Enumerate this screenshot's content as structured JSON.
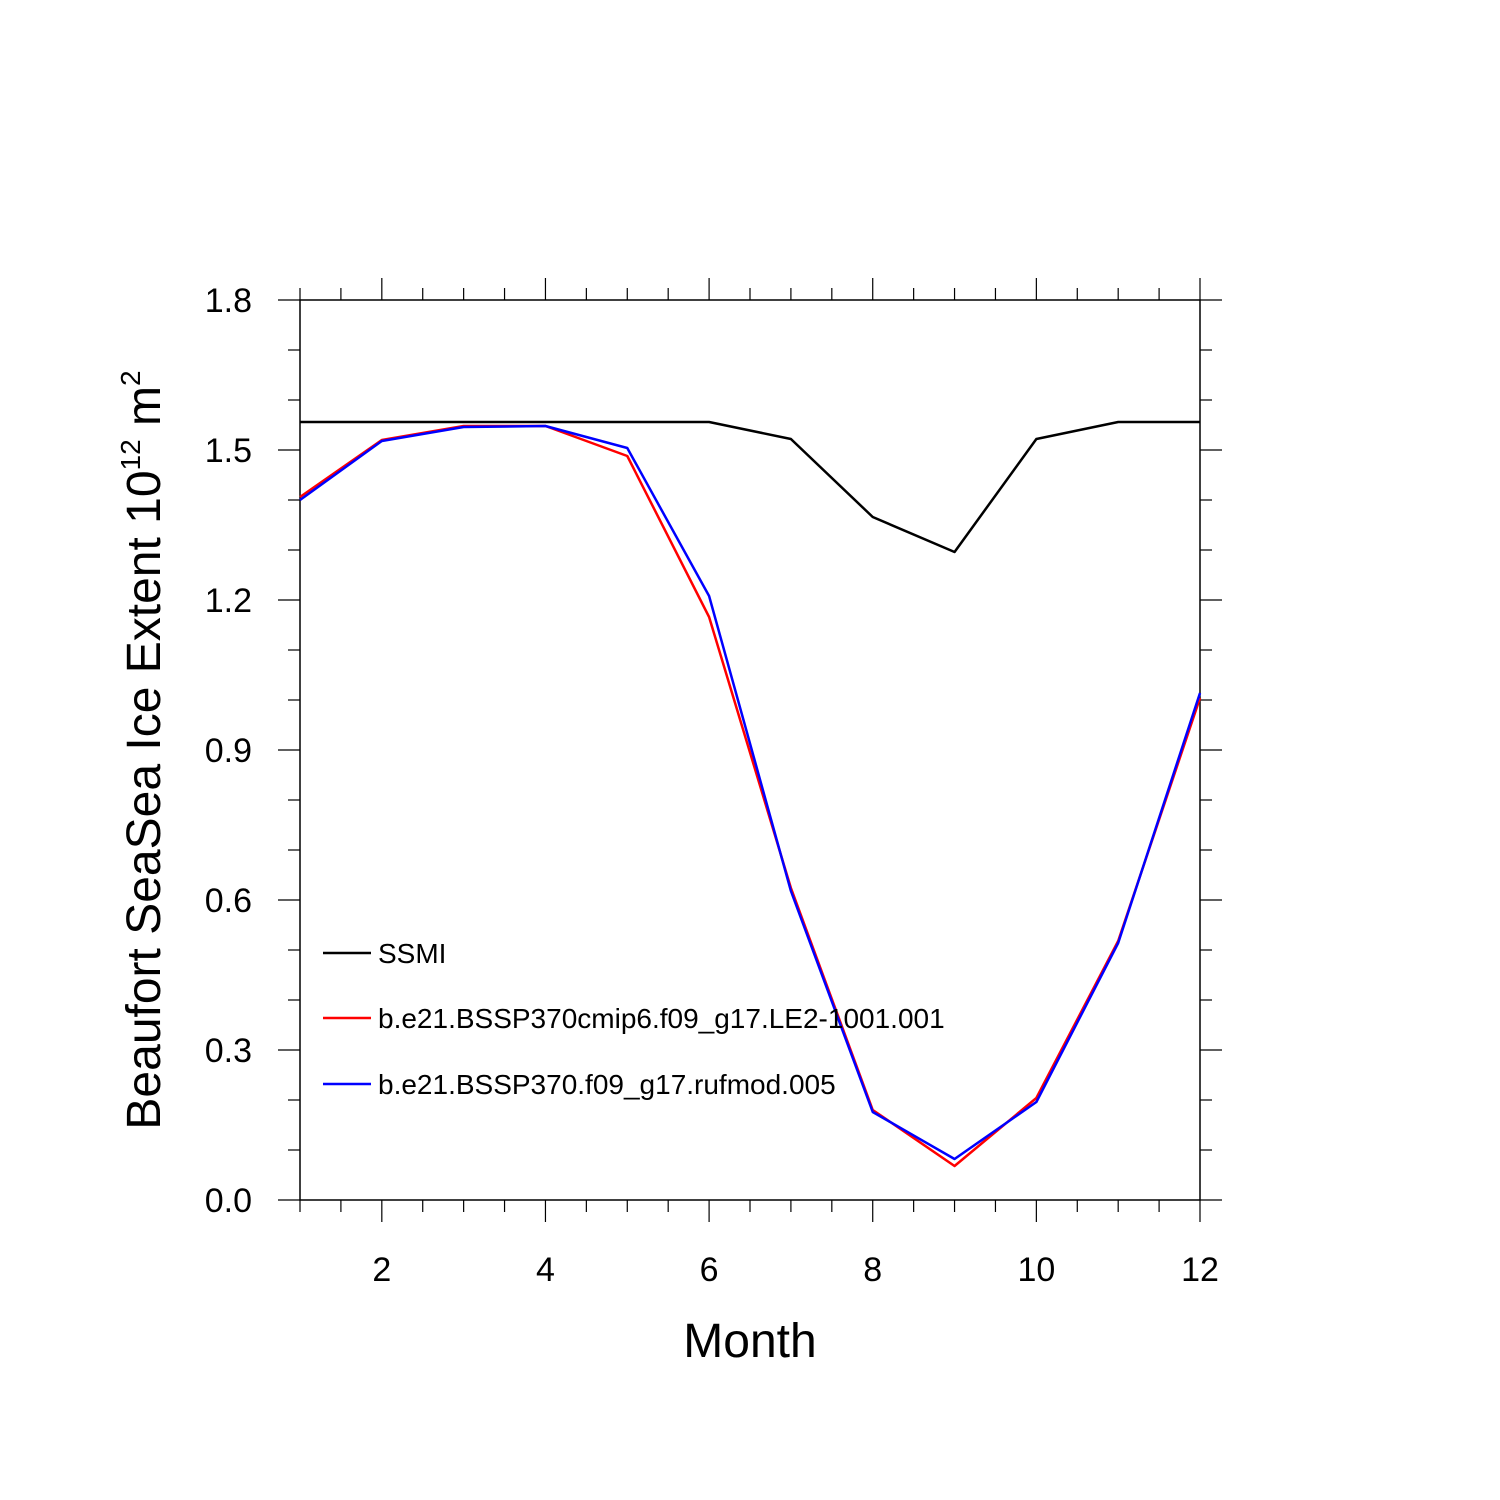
{
  "chart_data": {
    "type": "line",
    "xlabel": "Month",
    "ylabel": {
      "main": "Beaufort SeaSea Ice Extent 10",
      "exp": "12",
      "unit": " m",
      "unit_exp": "2"
    },
    "xlim": [
      1,
      12
    ],
    "ylim": [
      0.0,
      1.8
    ],
    "x_major_ticks": [
      2,
      4,
      6,
      8,
      10,
      12
    ],
    "y_major_ticks": [
      0.0,
      0.3,
      0.6,
      0.9,
      1.2,
      1.5,
      1.8
    ],
    "y_tick_labels": [
      "0.0",
      "0.3",
      "0.6",
      "0.9",
      "1.2",
      "1.5",
      "1.8"
    ],
    "x_tick_labels": [
      "2",
      "4",
      "6",
      "8",
      "10",
      "12"
    ],
    "legend_position": "lower-left",
    "x": [
      1,
      2,
      3,
      4,
      5,
      6,
      7,
      8,
      9,
      10,
      11,
      12
    ],
    "series": [
      {
        "name": "SSMI",
        "color": "#000000",
        "values": [
          1.556,
          1.556,
          1.556,
          1.556,
          1.556,
          1.556,
          1.522,
          1.366,
          1.296,
          1.522,
          1.556,
          1.556
        ]
      },
      {
        "name": "b.e21.BSSP370cmip6.f09_g17.LE2-1001.001",
        "color": "#ff0000",
        "values": [
          1.406,
          1.52,
          1.548,
          1.548,
          1.488,
          1.166,
          0.624,
          0.18,
          0.068,
          0.204,
          0.518,
          1.004
        ]
      },
      {
        "name": "b.e21.BSSP370.f09_g17.rufmod.005",
        "color": "#0000ff",
        "values": [
          1.4,
          1.518,
          1.546,
          1.548,
          1.504,
          1.208,
          0.618,
          0.176,
          0.082,
          0.196,
          0.514,
          1.014
        ]
      }
    ]
  }
}
